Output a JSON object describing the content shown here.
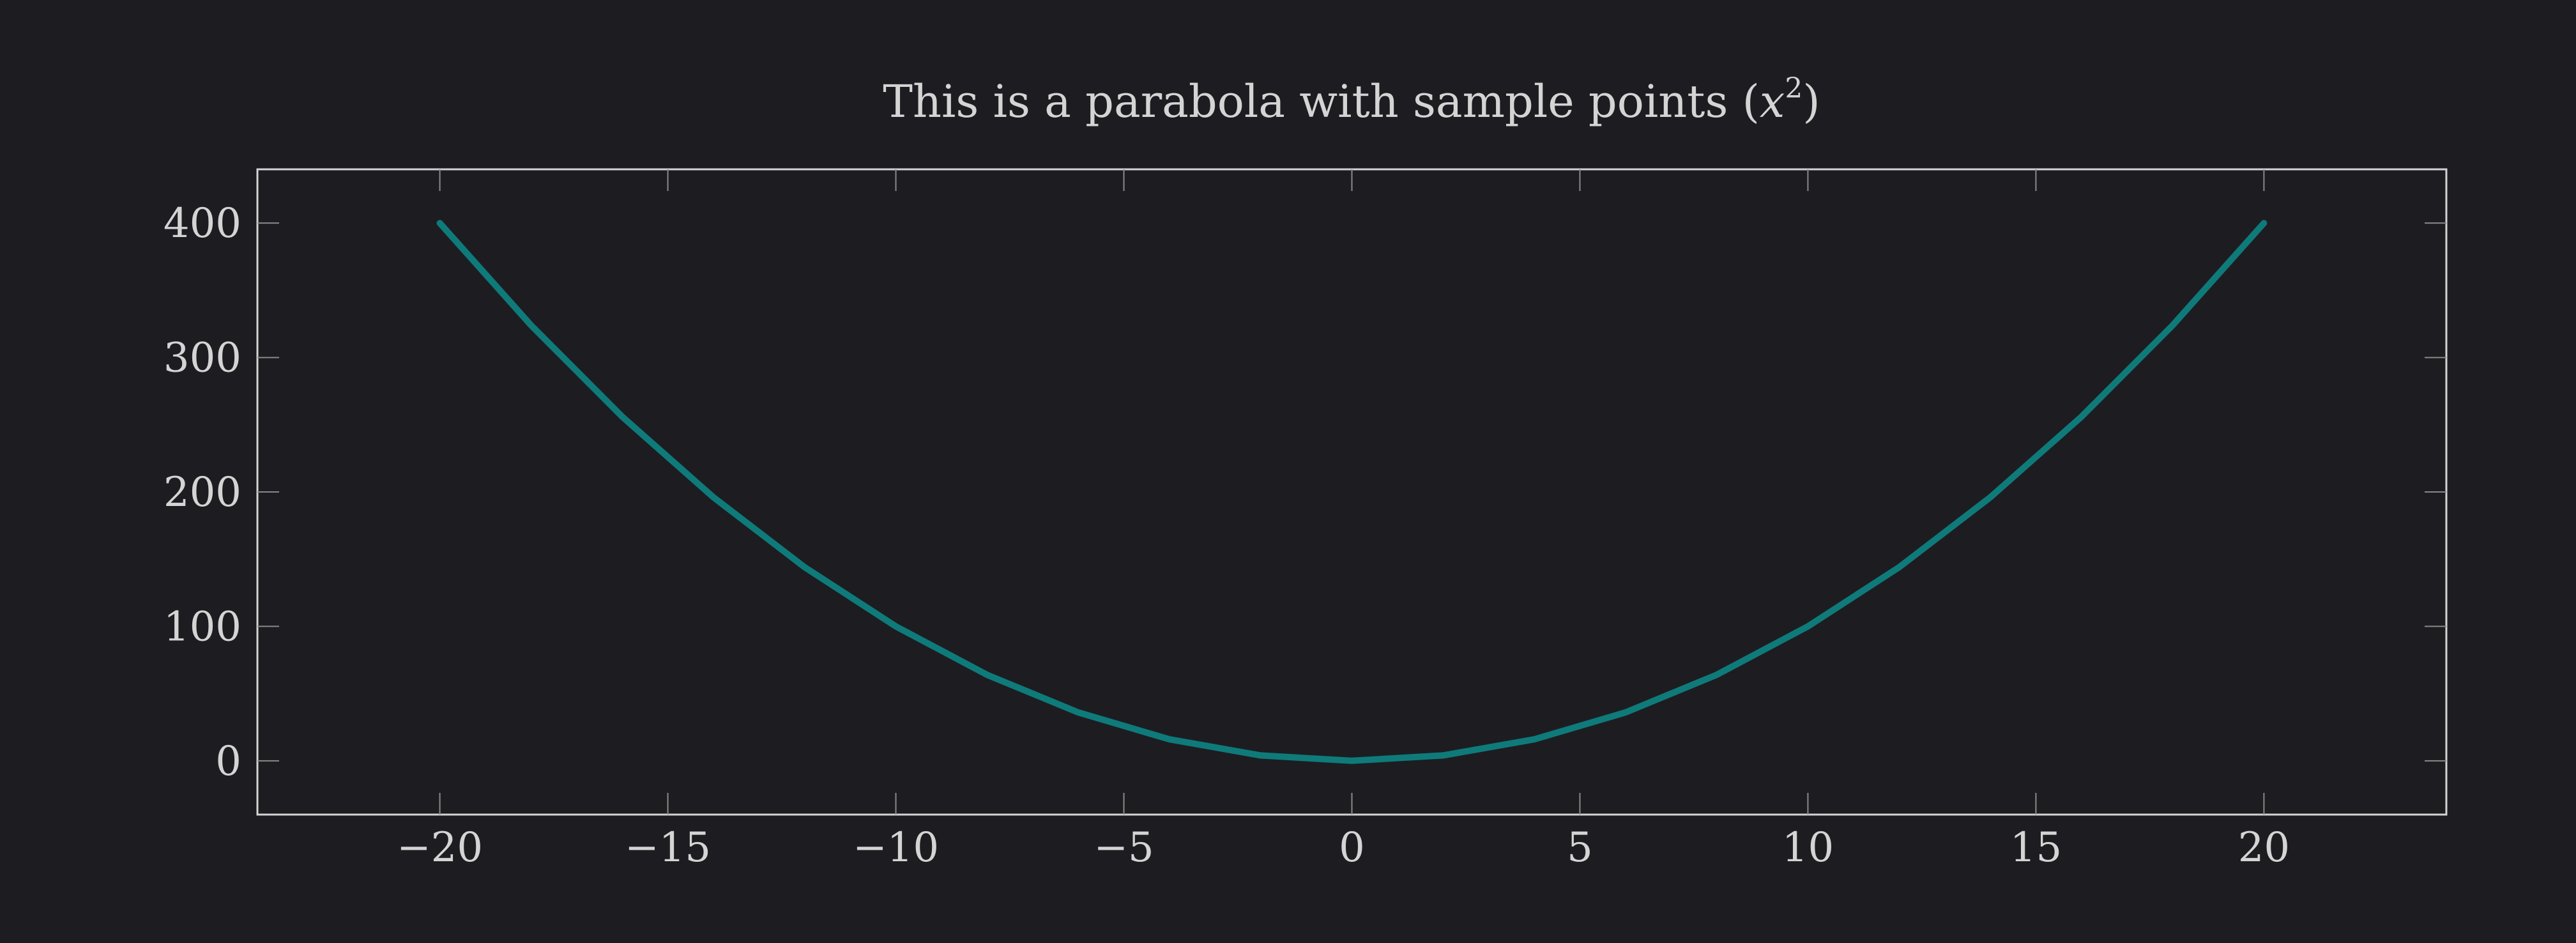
{
  "chart_data": {
    "type": "line",
    "title": "This is a parabola with sample points (x²)",
    "title_parts": {
      "prefix": "This is a parabola with sample points (",
      "var": "x",
      "exp": "2",
      "suffix": ")"
    },
    "xlabel": "",
    "ylabel": "",
    "xlim": [
      -24,
      24
    ],
    "ylim": [
      -40,
      440
    ],
    "x_ticks": [
      -20,
      -15,
      -10,
      -5,
      0,
      5,
      10,
      15,
      20
    ],
    "x_tick_labels": [
      "−20",
      "−15",
      "−10",
      "−5",
      "0",
      "5",
      "10",
      "15",
      "20"
    ],
    "y_ticks": [
      0,
      100,
      200,
      300,
      400
    ],
    "y_tick_labels": [
      "0",
      "100",
      "200",
      "300",
      "400"
    ],
    "grid": false,
    "series": [
      {
        "color": "#0f7a7a",
        "x": [
          -20,
          -18,
          -16,
          -14,
          -12,
          -10,
          -8,
          -6,
          -4,
          -2,
          0,
          2,
          4,
          6,
          8,
          10,
          12,
          14,
          16,
          18,
          20
        ],
        "y": [
          400,
          324,
          256,
          196,
          144,
          100,
          64,
          36,
          16,
          4,
          0,
          4,
          16,
          36,
          64,
          100,
          144,
          196,
          256,
          324,
          400
        ]
      }
    ]
  }
}
